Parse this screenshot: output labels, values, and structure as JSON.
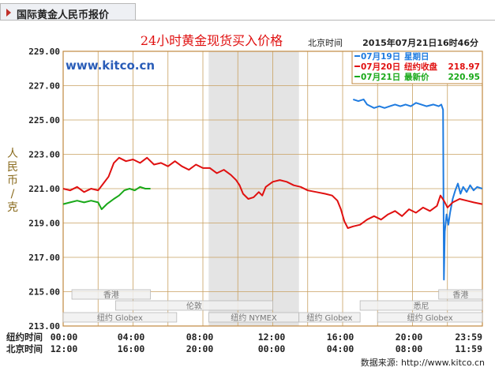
{
  "tab": {
    "title": "国际黄金人民币报价"
  },
  "header": {
    "chart_title": "24小时黄金现货买入价格",
    "time_label": "北京时间",
    "datetime": "2015年07月21日16时46分"
  },
  "watermark": "www.kitco.cn",
  "ylabel": "人民币/克",
  "legend": [
    {
      "date": "07月19日",
      "info_label": "星期日",
      "info_value": "",
      "color": "#1e7be0"
    },
    {
      "date": "07月20日",
      "info_label": "纽约收盘",
      "info_value": "218.97",
      "color": "#e01010"
    },
    {
      "date": "07月21日",
      "info_label": "最新价",
      "info_value": "220.95",
      "color": "#18a818"
    }
  ],
  "x_rows": [
    {
      "label": "纽约时间",
      "ticks": [
        "00:00",
        "04:00",
        "08:00",
        "12:00",
        "16:00",
        "20:00",
        "23:59"
      ]
    },
    {
      "label": "北京时间",
      "ticks": [
        "12:00",
        "16:00",
        "20:00",
        "00:00",
        "04:00",
        "08:00",
        "11:59"
      ]
    }
  ],
  "markets": [
    {
      "name": "纽约 Globex",
      "start": 0,
      "end": 6.5
    },
    {
      "name": "香港",
      "start": 0.5,
      "end": 5
    },
    {
      "name": "伦敦",
      "start": 3,
      "end": 12
    },
    {
      "name": "纽约 NYMEX",
      "start": 8.33,
      "end": 13.5
    },
    {
      "name": "纽约 Globex",
      "start": 13.5,
      "end": 17
    },
    {
      "name": "纽约 Globex",
      "start": 18,
      "end": 24
    },
    {
      "name": "悉尼",
      "start": 17,
      "end": 24
    },
    {
      "name": "香港",
      "start": 21.5,
      "end": 24
    }
  ],
  "source": "数据来源: http://www.kitco.cn",
  "colors": {
    "grid": "#c8a060",
    "axis": "#c08840",
    "shade": "#e4e4e4",
    "title": "#e01010"
  },
  "chart_data": {
    "type": "line",
    "title": "24小时黄金现货买入价格",
    "ylabel": "人民币/克",
    "xlim": [
      0,
      24
    ],
    "ylim": [
      213,
      229
    ],
    "yticks": [
      "213.00",
      "215.00",
      "217.00",
      "219.00",
      "221.00",
      "223.00",
      "225.00",
      "227.00",
      "229.00"
    ],
    "shaded_region": [
      8.33,
      13.5
    ],
    "grid": true,
    "series": [
      {
        "name": "07月19日",
        "color": "#1e7be0",
        "points": [
          [
            16.6,
            226.2
          ],
          [
            16.9,
            226.1
          ],
          [
            17.2,
            226.2
          ],
          [
            17.4,
            225.9
          ],
          [
            17.6,
            225.8
          ],
          [
            17.8,
            225.7
          ],
          [
            18.1,
            225.8
          ],
          [
            18.4,
            225.7
          ],
          [
            18.7,
            225.8
          ],
          [
            19.0,
            225.9
          ],
          [
            19.3,
            225.8
          ],
          [
            19.6,
            225.9
          ],
          [
            19.9,
            225.8
          ],
          [
            20.2,
            226.0
          ],
          [
            20.5,
            225.9
          ],
          [
            20.8,
            225.8
          ],
          [
            21.2,
            225.9
          ],
          [
            21.5,
            225.8
          ],
          [
            21.65,
            225.9
          ],
          [
            21.75,
            225.6
          ],
          [
            21.8,
            215.7
          ],
          [
            21.85,
            218.5
          ],
          [
            21.95,
            219.5
          ],
          [
            22.05,
            218.9
          ],
          [
            22.15,
            219.6
          ],
          [
            22.3,
            220.4
          ],
          [
            22.45,
            220.9
          ],
          [
            22.6,
            221.3
          ],
          [
            22.75,
            220.7
          ],
          [
            22.9,
            221.1
          ],
          [
            23.1,
            220.8
          ],
          [
            23.3,
            221.2
          ],
          [
            23.5,
            220.9
          ],
          [
            23.7,
            221.1
          ],
          [
            23.99,
            221.0
          ]
        ]
      },
      {
        "name": "07月20日",
        "color": "#e01010",
        "points": [
          [
            0,
            221.0
          ],
          [
            0.4,
            220.9
          ],
          [
            0.8,
            221.1
          ],
          [
            1.2,
            220.8
          ],
          [
            1.6,
            221.0
          ],
          [
            2.0,
            220.9
          ],
          [
            2.3,
            221.3
          ],
          [
            2.6,
            221.7
          ],
          [
            2.9,
            222.5
          ],
          [
            3.2,
            222.8
          ],
          [
            3.6,
            222.6
          ],
          [
            4.0,
            222.7
          ],
          [
            4.4,
            222.5
          ],
          [
            4.8,
            222.8
          ],
          [
            5.2,
            222.4
          ],
          [
            5.6,
            222.5
          ],
          [
            6.0,
            222.3
          ],
          [
            6.4,
            222.6
          ],
          [
            6.8,
            222.3
          ],
          [
            7.2,
            222.1
          ],
          [
            7.6,
            222.4
          ],
          [
            8.0,
            222.2
          ],
          [
            8.4,
            222.2
          ],
          [
            8.8,
            221.9
          ],
          [
            9.2,
            222.1
          ],
          [
            9.6,
            221.8
          ],
          [
            9.9,
            221.5
          ],
          [
            10.1,
            221.2
          ],
          [
            10.3,
            220.7
          ],
          [
            10.6,
            220.4
          ],
          [
            10.9,
            220.5
          ],
          [
            11.2,
            220.8
          ],
          [
            11.4,
            220.6
          ],
          [
            11.6,
            221.1
          ],
          [
            12.0,
            221.4
          ],
          [
            12.4,
            221.5
          ],
          [
            12.8,
            221.4
          ],
          [
            13.2,
            221.2
          ],
          [
            13.6,
            221.1
          ],
          [
            14.0,
            220.9
          ],
          [
            14.5,
            220.8
          ],
          [
            15.0,
            220.7
          ],
          [
            15.4,
            220.6
          ],
          [
            15.7,
            220.3
          ],
          [
            15.9,
            219.8
          ],
          [
            16.1,
            219.1
          ],
          [
            16.3,
            218.7
          ],
          [
            16.6,
            218.8
          ],
          [
            17.0,
            218.9
          ],
          [
            17.4,
            219.2
          ],
          [
            17.8,
            219.4
          ],
          [
            18.2,
            219.2
          ],
          [
            18.6,
            219.5
          ],
          [
            19.0,
            219.7
          ],
          [
            19.4,
            219.4
          ],
          [
            19.8,
            219.8
          ],
          [
            20.2,
            219.6
          ],
          [
            20.6,
            219.9
          ],
          [
            21.0,
            219.7
          ],
          [
            21.4,
            220.0
          ],
          [
            21.6,
            220.6
          ],
          [
            21.8,
            220.3
          ],
          [
            22.0,
            219.9
          ],
          [
            22.3,
            220.2
          ],
          [
            22.7,
            220.4
          ],
          [
            23.1,
            220.3
          ],
          [
            23.5,
            220.2
          ],
          [
            23.99,
            220.1
          ]
        ]
      },
      {
        "name": "07月21日",
        "color": "#18a818",
        "points": [
          [
            0,
            220.1
          ],
          [
            0.4,
            220.2
          ],
          [
            0.8,
            220.3
          ],
          [
            1.2,
            220.2
          ],
          [
            1.6,
            220.3
          ],
          [
            2.0,
            220.2
          ],
          [
            2.2,
            219.8
          ],
          [
            2.5,
            220.1
          ],
          [
            2.9,
            220.4
          ],
          [
            3.2,
            220.6
          ],
          [
            3.5,
            220.9
          ],
          [
            3.8,
            221.0
          ],
          [
            4.1,
            220.9
          ],
          [
            4.4,
            221.1
          ],
          [
            4.7,
            221.0
          ],
          [
            5.0,
            221.0
          ]
        ]
      }
    ]
  }
}
